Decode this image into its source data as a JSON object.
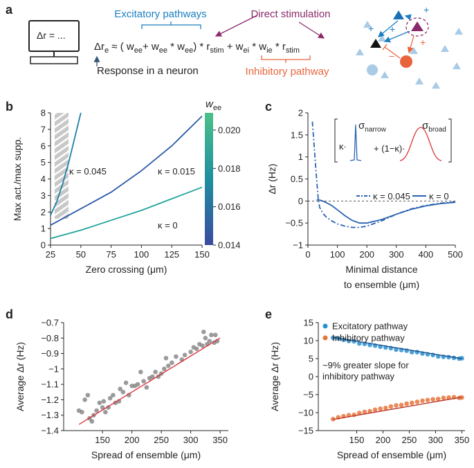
{
  "diagram": {
    "panel": "a",
    "computer_text": "Δr = ...",
    "excitatory": "Excitatory pathways",
    "direct": "Direct stimulation",
    "response": "Response in a neuron",
    "inhibitory": "Inhibitory pathway",
    "equation": [
      {
        "text": "Δr",
        "sub": "e"
      },
      {
        "text": " ≈ ( w",
        "sub": "ee"
      },
      {
        "text": "+ w",
        "sub": "ee"
      },
      {
        "text": " * w",
        "sub": "ee"
      },
      {
        "text": ") * r",
        "sub": "stim"
      },
      {
        "text": " + w",
        "sub": "ei"
      },
      {
        "text": " * w",
        "sub": "ie"
      },
      {
        "text": " * r",
        "sub": "stim"
      }
    ],
    "network_signs": [
      "+",
      "+",
      "+",
      "−",
      "+"
    ]
  },
  "chart_data": [
    {
      "type": "line",
      "panel": "b",
      "xlabel": [
        "Zero crossing (μm)"
      ],
      "ylabel": "Max act./max supp.",
      "xlim": [
        25,
        150
      ],
      "xticks": [
        25,
        50,
        75,
        100,
        125,
        150
      ],
      "ylim": [
        0,
        8
      ],
      "yticks": [
        0,
        1,
        2,
        3,
        4,
        5,
        6,
        7,
        8
      ],
      "series": [
        {
          "name": "κ = 0.045",
          "color": "#1f7fa6",
          "x": [
            25,
            30,
            35,
            40,
            45,
            50
          ],
          "values": [
            1.8,
            2.6,
            3.7,
            5.0,
            6.5,
            8.0
          ]
        },
        {
          "name": "κ = 0.015",
          "color": "#2a5aa8",
          "x": [
            25,
            50,
            75,
            100,
            125,
            150
          ],
          "values": [
            1.2,
            2.2,
            3.2,
            4.5,
            6.0,
            7.8
          ]
        },
        {
          "name": "κ = 0",
          "color": "#1fa39a",
          "x": [
            25,
            50,
            75,
            100,
            125,
            150
          ],
          "values": [
            0.4,
            0.9,
            1.5,
            2.1,
            2.8,
            3.5
          ]
        }
      ],
      "colorbar": {
        "label": "w",
        "label_sub": "ee",
        "lim": [
          0.014,
          0.0209
        ],
        "ticks": [
          0.014,
          0.016,
          0.018,
          {
            "value": 0.02,
            "label": "0.020"
          }
        ],
        "colors": [
          "#3b4ba0",
          "#1f8fa0",
          "#4cc08a"
        ]
      }
    },
    {
      "type": "line",
      "panel": "c",
      "xlabel": [
        "Minimal distance",
        "to ensemble (μm)"
      ],
      "ylabel": "Δr (Hz)",
      "xlim": [
        0,
        500
      ],
      "xticks": [
        0,
        100,
        200,
        300,
        400,
        500
      ],
      "ylim": [
        -1,
        2
      ],
      "yticks": [
        {
          "value": -1,
          "label": "−1"
        },
        {
          "value": -0.5,
          "label": "−0.5"
        },
        0,
        0.5,
        1,
        1.5,
        2
      ],
      "series": [
        {
          "name": "κ = 0.045",
          "color": "#2a62b0",
          "dash": "dashdot",
          "x": [
            15,
            20,
            25,
            30,
            35,
            40,
            50,
            60,
            80,
            100,
            125,
            150,
            175,
            200,
            250,
            300,
            350,
            400,
            450,
            500
          ],
          "values": [
            1.8,
            1.35,
            0.9,
            0.45,
            0.05,
            -0.15,
            -0.27,
            -0.35,
            -0.45,
            -0.52,
            -0.57,
            -0.6,
            -0.6,
            -0.57,
            -0.45,
            -0.3,
            -0.18,
            -0.1,
            -0.05,
            -0.02
          ]
        },
        {
          "name": "κ = 0",
          "color": "#2a62b0",
          "x": [
            30,
            40,
            50,
            60,
            80,
            100,
            125,
            150,
            175,
            200,
            250,
            300,
            350,
            400,
            450,
            500
          ],
          "values": [
            0.03,
            0.02,
            0,
            -0.03,
            -0.1,
            -0.2,
            -0.33,
            -0.44,
            -0.5,
            -0.5,
            -0.42,
            -0.3,
            -0.19,
            -0.11,
            -0.06,
            -0.03
          ]
        }
      ],
      "inset": {
        "kappa": "κ·",
        "mix": "+ (1−κ)·",
        "narrow": {
          "text": "σ",
          "sub": "narrow"
        },
        "broad": {
          "text": "σ",
          "sub": "broad"
        }
      }
    },
    {
      "type": "scatter",
      "panel": "d",
      "xlabel": [
        "Spread of ensemble (μm)"
      ],
      "ylabel": "Average Δr (Hz)",
      "xlim": [
        84,
        364
      ],
      "xticks": [
        150,
        200,
        250,
        300,
        350
      ],
      "ylim": [
        -1.4,
        -0.7
      ],
      "yticks": [
        {
          "value": -1.4,
          "label": "−1.4"
        },
        {
          "value": -1.3,
          "label": "−1.3"
        },
        {
          "value": -1.2,
          "label": "−1.2"
        },
        {
          "value": -1.1,
          "label": "−1.1"
        },
        {
          "value": -1,
          "label": "−1"
        },
        {
          "value": -0.9,
          "label": "−0.9"
        },
        {
          "value": -0.8,
          "label": "−0.8"
        },
        {
          "value": -0.7,
          "label": "−0.7"
        }
      ],
      "series": [
        {
          "color": "#8a8a8a",
          "x": [
            110,
            115,
            120,
            125,
            128,
            132,
            135,
            140,
            145,
            150,
            152,
            155,
            160,
            163,
            168,
            172,
            178,
            180,
            185,
            190,
            195,
            200,
            205,
            210,
            215,
            220,
            225,
            230,
            235,
            240,
            245,
            250,
            255,
            258,
            262,
            268,
            275,
            285,
            290,
            300,
            305,
            310,
            315,
            320,
            322,
            325,
            328,
            332,
            335,
            340,
            342,
            345
          ],
          "values": [
            -1.27,
            -1.28,
            -1.2,
            -1.17,
            -1.32,
            -1.34,
            -1.3,
            -1.27,
            -1.22,
            -1.25,
            -1.21,
            -1.28,
            -1.25,
            -1.19,
            -1.17,
            -1.22,
            -1.21,
            -1.13,
            -1.15,
            -1.09,
            -1.17,
            -1.11,
            -1.11,
            -1.1,
            -1.02,
            -1.08,
            -1.12,
            -1.06,
            -1.05,
            -1.02,
            -1.05,
            -1.03,
            -1.0,
            -0.93,
            -0.98,
            -0.96,
            -0.92,
            -0.94,
            -0.91,
            -0.89,
            -0.86,
            -0.87,
            -0.84,
            -0.85,
            -0.76,
            -0.8,
            -0.84,
            -0.82,
            -0.78,
            -0.83,
            -0.78,
            -0.82
          ]
        },
        {
          "color": "#d9363e",
          "style": "line",
          "x": [
            110,
            350
          ],
          "values": [
            -1.36,
            -0.8
          ]
        }
      ]
    },
    {
      "type": "scatter",
      "panel": "e",
      "xlabel": [
        "Spread of ensemble (μm)"
      ],
      "ylabel": "Average Δr (Hz)",
      "xlim": [
        77,
        356
      ],
      "xticks": [
        150,
        200,
        250,
        300,
        350
      ],
      "ylim": [
        -15,
        15
      ],
      "yticks": [
        {
          "value": -15,
          "label": "−15"
        },
        {
          "value": -10,
          "label": "−10"
        },
        {
          "value": -5,
          "label": "−5"
        },
        0,
        5,
        10,
        15
      ],
      "annotation": [
        "~9% greater slope for",
        "inhibitory pathway"
      ],
      "series": [
        {
          "name": "Excitatory pathway",
          "color": "#2a8fd0",
          "x": [
            105,
            115,
            125,
            135,
            145,
            155,
            165,
            175,
            185,
            195,
            205,
            215,
            225,
            235,
            245,
            255,
            265,
            275,
            285,
            295,
            305,
            315,
            325,
            335,
            345,
            350
          ],
          "values": [
            10.8,
            10.6,
            10.2,
            9.9,
            9.8,
            9.2,
            9.1,
            8.8,
            8.6,
            8.3,
            8.1,
            7.9,
            7.5,
            7.4,
            7.2,
            6.8,
            6.8,
            6.4,
            6.2,
            6.0,
            5.6,
            5.5,
            5.4,
            5.2,
            5.0,
            5.1
          ]
        },
        {
          "name": "Inhibitory pathway",
          "color": "#e8743c",
          "x": [
            105,
            115,
            125,
            135,
            145,
            155,
            165,
            175,
            185,
            195,
            205,
            215,
            225,
            235,
            245,
            255,
            265,
            275,
            285,
            295,
            305,
            315,
            325,
            335,
            345,
            350
          ],
          "values": [
            -11.8,
            -11.3,
            -11.0,
            -10.7,
            -10.6,
            -10.1,
            -9.8,
            -9.6,
            -9.2,
            -8.9,
            -8.7,
            -8.3,
            -8.0,
            -7.9,
            -7.5,
            -7.3,
            -7.0,
            -6.7,
            -6.5,
            -6.3,
            -6.2,
            -5.9,
            -5.8,
            -5.7,
            -5.9,
            -5.8
          ]
        },
        {
          "color": "#1c4f8a",
          "style": "line",
          "x": [
            105,
            350
          ],
          "values": [
            10.9,
            5.0
          ]
        },
        {
          "color": "#b8382a",
          "style": "line",
          "x": [
            105,
            350
          ],
          "values": [
            -11.9,
            -5.7
          ]
        }
      ]
    }
  ]
}
